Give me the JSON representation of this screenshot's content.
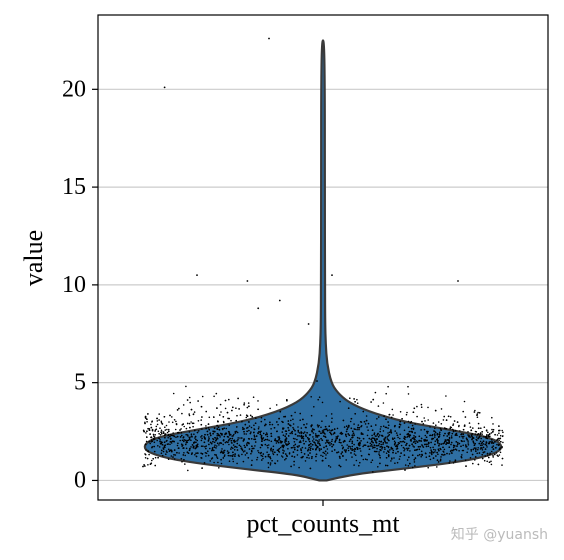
{
  "chart_data": {
    "type": "violin",
    "title": "",
    "xlabel": "",
    "ylabel": "value",
    "categories": [
      "pct_counts_mt"
    ],
    "ylim": [
      -1.0,
      23.8
    ],
    "yticks": [
      0,
      5,
      10,
      15,
      20
    ],
    "grid": "horizontal",
    "violin_color": "#2f6fa3",
    "outline_color": "#3a3a3a",
    "point_color": "#000000",
    "density_profile": [
      {
        "y": 0.0,
        "w": 0.02
      },
      {
        "y": 0.3,
        "w": 0.15
      },
      {
        "y": 0.6,
        "w": 0.45
      },
      {
        "y": 1.0,
        "w": 0.8
      },
      {
        "y": 1.4,
        "w": 0.97
      },
      {
        "y": 1.8,
        "w": 1.0
      },
      {
        "y": 2.2,
        "w": 0.93
      },
      {
        "y": 2.6,
        "w": 0.7
      },
      {
        "y": 3.0,
        "w": 0.45
      },
      {
        "y": 3.5,
        "w": 0.26
      },
      {
        "y": 4.0,
        "w": 0.14
      },
      {
        "y": 4.5,
        "w": 0.08
      },
      {
        "y": 5.0,
        "w": 0.045
      },
      {
        "y": 6.0,
        "w": 0.022
      },
      {
        "y": 7.0,
        "w": 0.015
      },
      {
        "y": 8.0,
        "w": 0.012
      },
      {
        "y": 10.0,
        "w": 0.011
      },
      {
        "y": 15.0,
        "w": 0.01
      },
      {
        "y": 20.0,
        "w": 0.01
      },
      {
        "y": 22.5,
        "w": 0.006
      }
    ],
    "outliers": [
      {
        "x": -0.88,
        "y": 20.1
      },
      {
        "x": -0.3,
        "y": 22.6
      },
      {
        "x": -0.7,
        "y": 10.5
      },
      {
        "x": -0.42,
        "y": 10.2
      },
      {
        "x": -0.24,
        "y": 9.2
      },
      {
        "x": -0.36,
        "y": 8.8
      },
      {
        "x": 0.05,
        "y": 10.5
      },
      {
        "x": 0.75,
        "y": 10.2
      },
      {
        "x": -0.08,
        "y": 8.0
      }
    ]
  },
  "watermark": "知乎 @yuansh"
}
